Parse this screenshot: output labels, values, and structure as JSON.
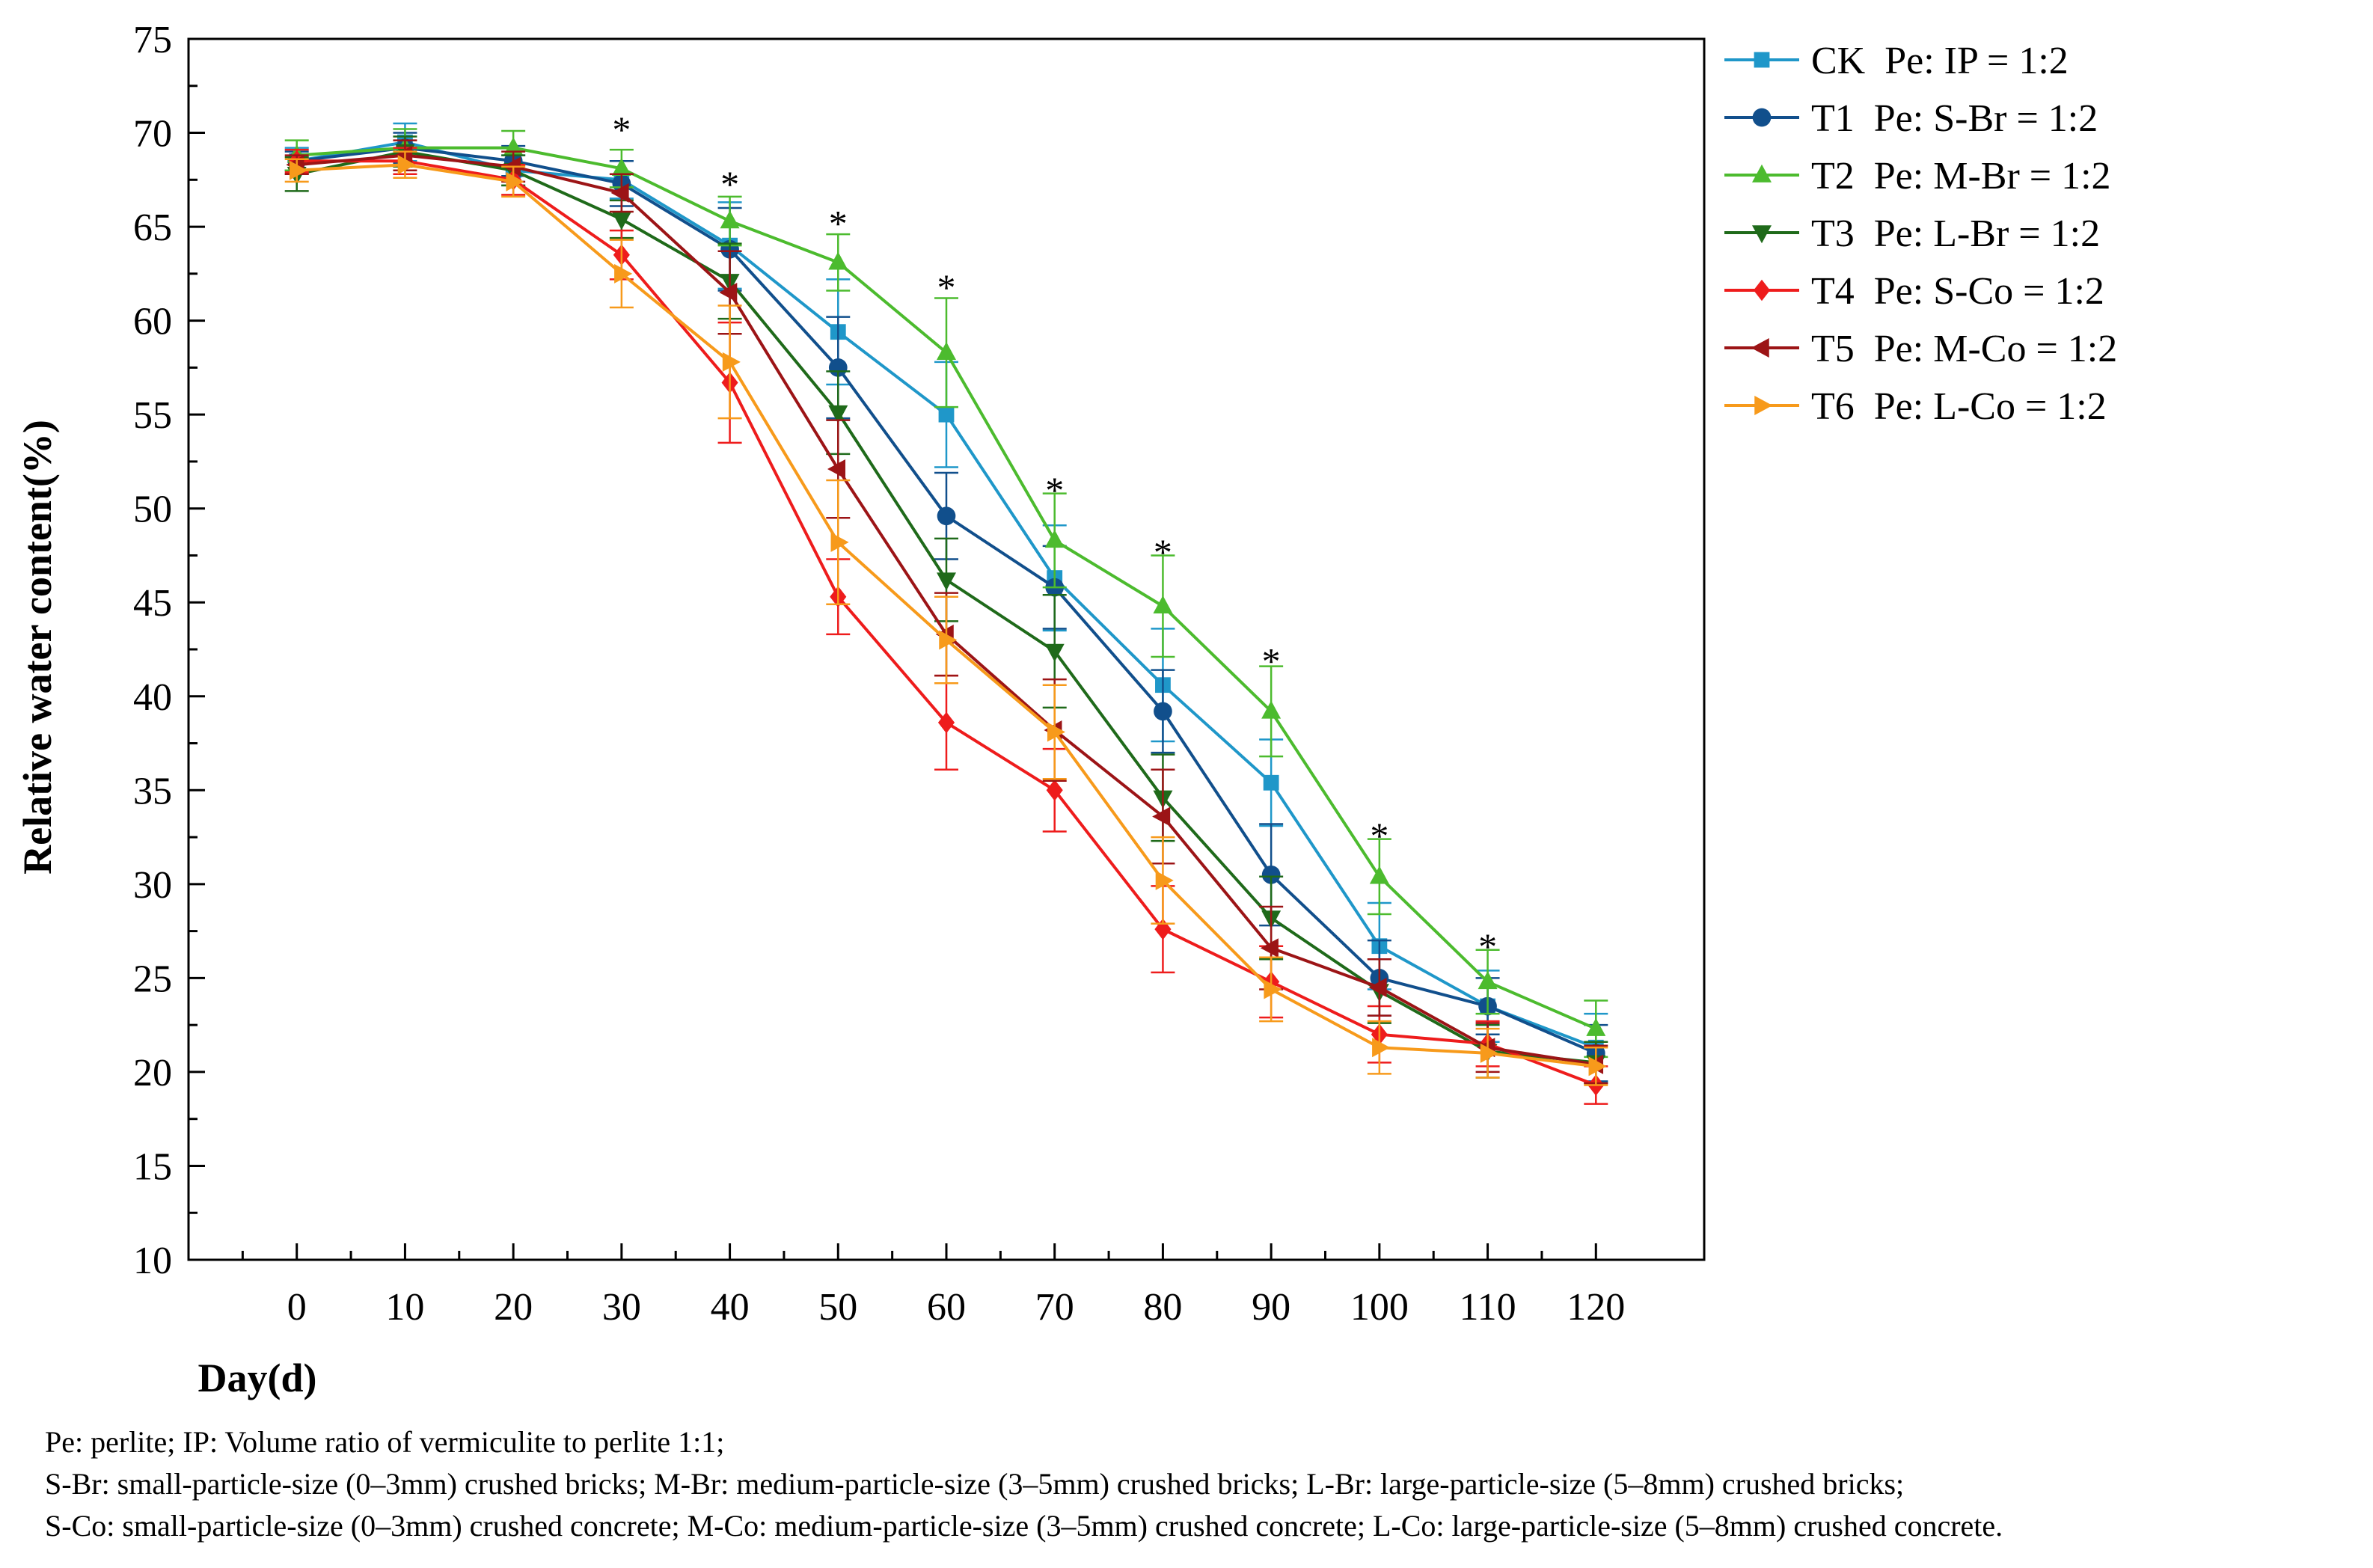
{
  "chart_data": {
    "type": "line",
    "title": "",
    "xlabel": "Day(d)",
    "ylabel": "Relative water content(%)",
    "x": [
      0,
      10,
      20,
      30,
      40,
      50,
      60,
      70,
      80,
      90,
      100,
      110,
      120
    ],
    "x_tick_labels": [
      "0",
      "10",
      "20",
      "30",
      "40",
      "50",
      "60",
      "70",
      "80",
      "90",
      "100",
      "110",
      "120"
    ],
    "xlim": [
      -10,
      130
    ],
    "ylim": [
      10,
      75
    ],
    "y_ticks": [
      10,
      15,
      20,
      25,
      30,
      35,
      40,
      45,
      50,
      55,
      60,
      65,
      70,
      75
    ],
    "y_tick_labels": [
      "10",
      "15",
      "20",
      "25",
      "30",
      "35",
      "40",
      "45",
      "50",
      "55",
      "60",
      "65",
      "70",
      "75"
    ],
    "grid": false,
    "legend_position": "right",
    "series": [
      {
        "name": "CK  Pe: IP = 1:2",
        "color": "#1f97c9",
        "marker": "square",
        "values": [
          68.5,
          69.5,
          68.0,
          67.5,
          64.0,
          59.4,
          55.0,
          46.3,
          40.6,
          35.4,
          26.7,
          23.5,
          21.3
        ],
        "errors": [
          0.7,
          1.0,
          0.8,
          1.0,
          2.3,
          2.8,
          2.8,
          2.8,
          3.0,
          2.3,
          2.3,
          1.9,
          1.8
        ]
      },
      {
        "name": "T1  Pe: S-Br = 1:2",
        "color": "#114f8c",
        "marker": "circle",
        "values": [
          68.5,
          69.2,
          68.5,
          67.3,
          63.8,
          57.5,
          49.6,
          45.8,
          39.2,
          30.5,
          25.0,
          23.5,
          21.0
        ],
        "errors": [
          0.5,
          0.8,
          0.8,
          1.2,
          2.2,
          2.7,
          2.3,
          2.2,
          2.2,
          2.7,
          2.0,
          1.5,
          1.5
        ]
      },
      {
        "name": "T2  Pe: M-Br = 1:2",
        "color": "#4cbb2e",
        "marker": "triangle-up",
        "values": [
          68.8,
          69.2,
          69.2,
          68.1,
          65.3,
          63.1,
          58.3,
          48.3,
          44.8,
          39.2,
          30.4,
          24.8,
          22.3
        ],
        "errors": [
          0.8,
          1.0,
          0.9,
          1.0,
          1.3,
          1.5,
          2.9,
          2.5,
          2.7,
          2.4,
          2.0,
          1.7,
          1.5
        ]
      },
      {
        "name": "T3  Pe: L-Br = 1:2",
        "color": "#1f6a1a",
        "marker": "triangle-down",
        "values": [
          67.8,
          69.0,
          68.0,
          65.4,
          62.1,
          55.1,
          46.2,
          42.4,
          34.6,
          28.2,
          24.3,
          21.1,
          20.5
        ],
        "errors": [
          0.9,
          0.8,
          0.8,
          1.0,
          2.0,
          2.2,
          2.2,
          3.0,
          2.3,
          2.2,
          1.7,
          1.4,
          1.1
        ]
      },
      {
        "name": "T4  Pe: S-Co = 1:2",
        "color": "#ee1c1c",
        "marker": "diamond",
        "values": [
          68.5,
          68.5,
          67.5,
          63.5,
          56.7,
          45.3,
          38.6,
          35.0,
          27.6,
          24.8,
          22.0,
          21.5,
          19.3
        ],
        "errors": [
          0.6,
          0.7,
          0.8,
          1.3,
          3.2,
          2.0,
          2.5,
          2.2,
          2.3,
          1.9,
          1.5,
          1.2,
          1.0
        ]
      },
      {
        "name": "T5  Pe: M-Co = 1:2",
        "color": "#9c1416",
        "marker": "triangle-left",
        "values": [
          68.3,
          68.8,
          68.2,
          66.8,
          61.5,
          52.1,
          43.3,
          38.2,
          33.6,
          26.6,
          24.5,
          21.3,
          20.4
        ],
        "errors": [
          0.5,
          0.8,
          0.8,
          1.0,
          2.2,
          2.6,
          2.2,
          2.7,
          2.5,
          2.2,
          1.5,
          1.3,
          1.0
        ]
      },
      {
        "name": "T6  Pe: L-Co = 1:2",
        "color": "#f79a1b",
        "marker": "triangle-right",
        "values": [
          68.0,
          68.3,
          67.4,
          62.5,
          57.8,
          48.2,
          43.0,
          38.1,
          30.2,
          24.4,
          21.3,
          21.0,
          20.3
        ],
        "errors": [
          0.6,
          0.7,
          0.8,
          1.8,
          3.0,
          3.3,
          2.3,
          2.5,
          2.3,
          1.7,
          1.4,
          1.3,
          1.0
        ]
      }
    ],
    "annotations": [
      {
        "text": "*",
        "x": 30,
        "y": 70.7
      },
      {
        "text": "*",
        "x": 40,
        "y": 67.8
      },
      {
        "text": "*",
        "x": 50,
        "y": 65.7
      },
      {
        "text": "*",
        "x": 60,
        "y": 62.3
      },
      {
        "text": "*",
        "x": 70,
        "y": 51.5
      },
      {
        "text": "*",
        "x": 80,
        "y": 48.2
      },
      {
        "text": "*",
        "x": 90,
        "y": 42.4
      },
      {
        "text": "*",
        "x": 100,
        "y": 33.1
      },
      {
        "text": "*",
        "x": 110,
        "y": 27.2
      }
    ]
  },
  "footnotes": [
    "Pe: perlite; IP: Volume ratio of vermiculite to perlite 1:1;",
    "S-Br: small-particle-size (0–3mm) crushed bricks; M-Br: medium-particle-size (3–5mm) crushed bricks; L-Br: large-particle-size (5–8mm) crushed bricks;",
    "S-Co: small-particle-size (0–3mm) crushed concrete; M-Co: medium-particle-size (3–5mm) crushed concrete; L-Co: large-particle-size (5–8mm) crushed concrete."
  ]
}
